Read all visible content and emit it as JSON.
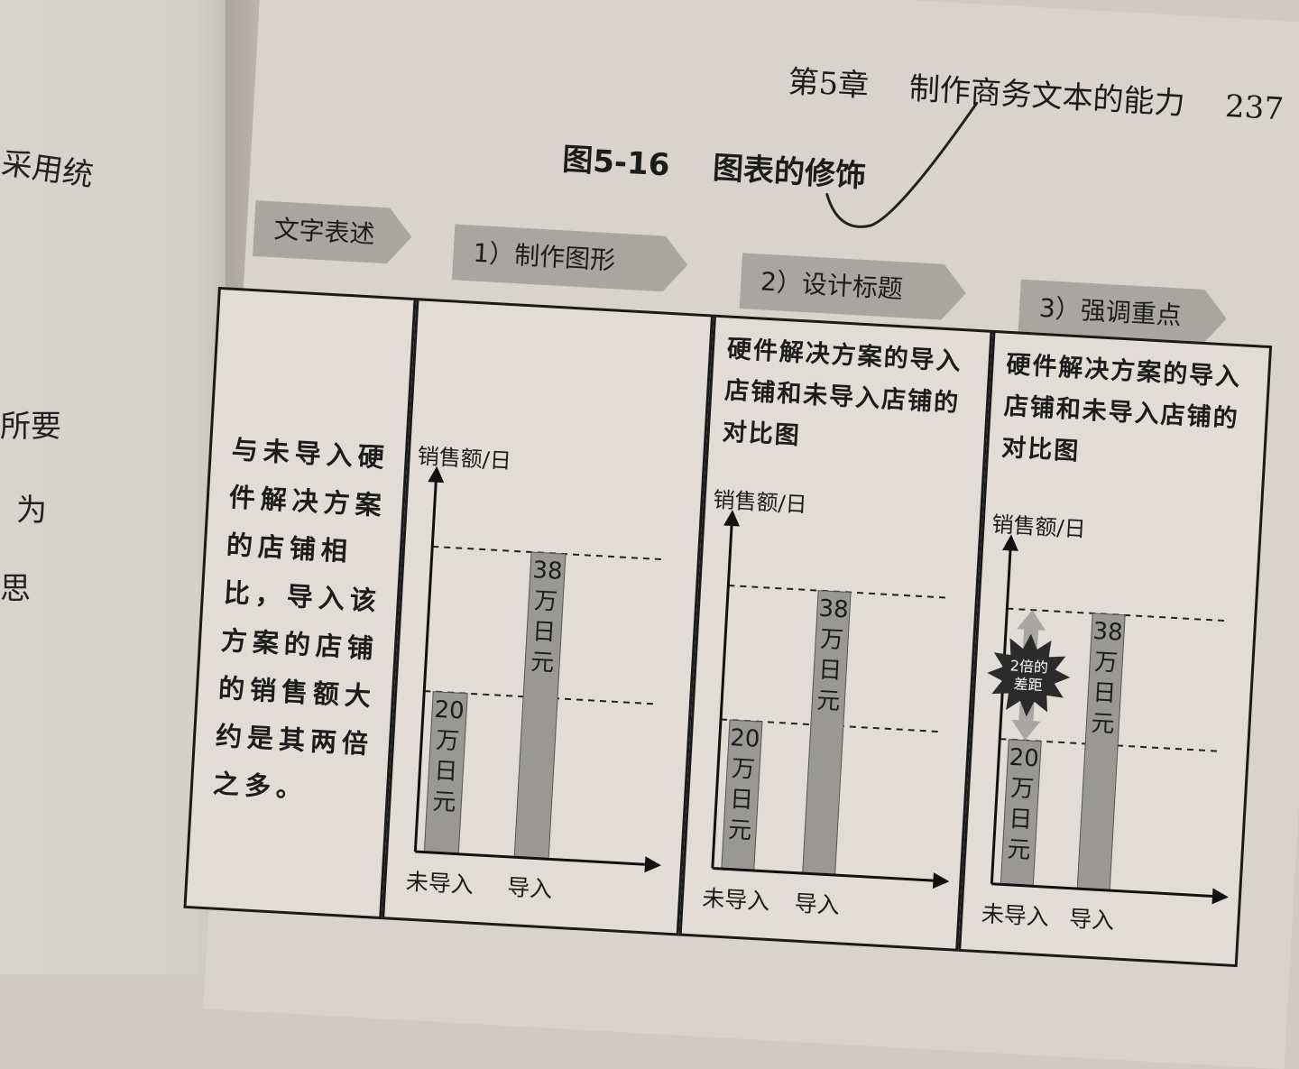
{
  "left_page": {
    "fragments": [
      "采用统",
      "所要",
      "为",
      "思"
    ]
  },
  "header": {
    "chapter": "第5章",
    "title": "制作商务文本的能力",
    "page_number": "237"
  },
  "figure": {
    "number": "图5-16",
    "title": "图表的修饰"
  },
  "steps": [
    "文字表述",
    "1）制作图形",
    "2）设计标题",
    "3）强调重点"
  ],
  "text_panel": {
    "content": "与未导入硬件解决方案的店铺相比，导入该方案的店铺的销售额大约是其两倍之多。"
  },
  "chart_title_text": "硬件解决方案的导入店铺和未导入店铺的对比图",
  "annotation": {
    "line1": "2倍的",
    "line2": "差距"
  },
  "chart_data": [
    {
      "type": "bar",
      "ylabel": "销售额/日",
      "categories": [
        "未导入",
        "导入"
      ],
      "values": [
        20,
        38
      ],
      "value_labels": [
        [
          "20",
          "万",
          "日",
          "元"
        ],
        [
          "38",
          "万",
          "日",
          "元"
        ]
      ],
      "ylim": [
        0,
        46
      ],
      "reference_lines": [
        20,
        38
      ],
      "bar_color": "#9a9894"
    },
    {
      "type": "bar",
      "title": "硬件解决方案的导入店铺和未导入店铺的对比图",
      "ylabel": "销售额/日",
      "categories": [
        "未导入",
        "导入"
      ],
      "values": [
        20,
        38
      ],
      "value_labels": [
        [
          "20",
          "万",
          "日",
          "元"
        ],
        [
          "38",
          "万",
          "日",
          "元"
        ]
      ],
      "ylim": [
        0,
        46
      ],
      "reference_lines": [
        20,
        38
      ],
      "bar_color": "#9a9894"
    },
    {
      "type": "bar",
      "title": "硬件解决方案的导入店铺和未导入店铺的对比图",
      "ylabel": "销售额/日",
      "categories": [
        "未导入",
        "导入"
      ],
      "values": [
        20,
        38
      ],
      "value_labels": [
        [
          "20",
          "万",
          "日",
          "元"
        ],
        [
          "38",
          "万",
          "日",
          "元"
        ]
      ],
      "ylim": [
        0,
        46
      ],
      "reference_lines": [
        20,
        38
      ],
      "annotation": "2倍的差距",
      "bar_color": "#9a9894"
    }
  ]
}
